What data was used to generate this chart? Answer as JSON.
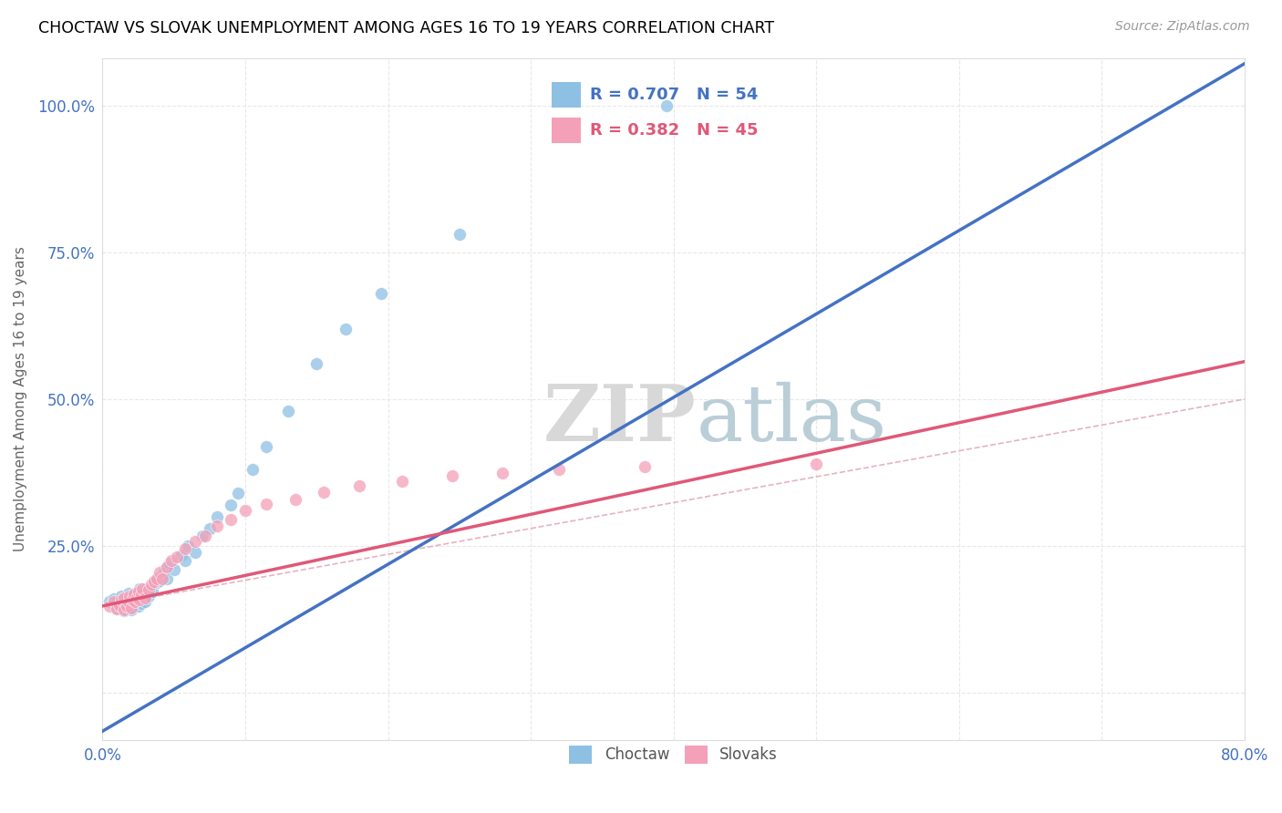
{
  "title": "CHOCTAW VS SLOVAK UNEMPLOYMENT AMONG AGES 16 TO 19 YEARS CORRELATION CHART",
  "source": "Source: ZipAtlas.com",
  "ylabel": "Unemployment Among Ages 16 to 19 years",
  "xlim": [
    0.0,
    0.8
  ],
  "ylim": [
    -0.08,
    1.08
  ],
  "choctaw_color": "#8EC0E4",
  "slovak_color": "#F4A0B8",
  "choctaw_line_color": "#4472C4",
  "slovak_line_color": "#E05878",
  "ref_line_color": "#D0A0B0",
  "axis_color": "#4472C4",
  "grid_color": "#E8E8E8",
  "choctaw_R": 0.707,
  "choctaw_N": 54,
  "slovak_R": 0.382,
  "slovak_N": 45,
  "legend_label_choctaw": "Choctaw",
  "legend_label_slovak": "Slovaks",
  "watermark_zip": "ZIP",
  "watermark_atlas": "atlas",
  "choctaw_line_slope": 1.42,
  "choctaw_line_intercept": -0.065,
  "slovak_line_slope": 0.52,
  "slovak_line_intercept": 0.148,
  "choctaw_scatter_x": [
    0.005,
    0.008,
    0.01,
    0.01,
    0.012,
    0.013,
    0.015,
    0.015,
    0.016,
    0.017,
    0.018,
    0.018,
    0.02,
    0.02,
    0.021,
    0.022,
    0.022,
    0.023,
    0.024,
    0.025,
    0.026,
    0.026,
    0.027,
    0.028,
    0.03,
    0.03,
    0.032,
    0.034,
    0.035,
    0.036,
    0.038,
    0.04,
    0.042,
    0.044,
    0.045,
    0.047,
    0.05,
    0.055,
    0.058,
    0.06,
    0.065,
    0.07,
    0.075,
    0.08,
    0.09,
    0.095,
    0.105,
    0.115,
    0.13,
    0.15,
    0.17,
    0.195,
    0.25,
    0.395
  ],
  "choctaw_scatter_y": [
    0.155,
    0.16,
    0.145,
    0.155,
    0.148,
    0.165,
    0.14,
    0.15,
    0.158,
    0.162,
    0.145,
    0.17,
    0.142,
    0.152,
    0.158,
    0.16,
    0.168,
    0.155,
    0.162,
    0.148,
    0.16,
    0.178,
    0.152,
    0.165,
    0.155,
    0.175,
    0.165,
    0.18,
    0.172,
    0.19,
    0.188,
    0.192,
    0.2,
    0.21,
    0.195,
    0.22,
    0.21,
    0.235,
    0.225,
    0.25,
    0.24,
    0.268,
    0.28,
    0.3,
    0.32,
    0.34,
    0.38,
    0.42,
    0.48,
    0.56,
    0.62,
    0.68,
    0.78,
    1.0
  ],
  "slovak_scatter_x": [
    0.005,
    0.008,
    0.01,
    0.012,
    0.013,
    0.015,
    0.015,
    0.017,
    0.018,
    0.019,
    0.02,
    0.021,
    0.022,
    0.023,
    0.024,
    0.025,
    0.026,
    0.027,
    0.028,
    0.03,
    0.032,
    0.034,
    0.036,
    0.038,
    0.04,
    0.042,
    0.045,
    0.048,
    0.052,
    0.058,
    0.065,
    0.072,
    0.08,
    0.09,
    0.1,
    0.115,
    0.135,
    0.155,
    0.18,
    0.21,
    0.245,
    0.28,
    0.32,
    0.38,
    0.5
  ],
  "slovak_scatter_y": [
    0.148,
    0.155,
    0.143,
    0.15,
    0.158,
    0.142,
    0.162,
    0.148,
    0.155,
    0.165,
    0.145,
    0.158,
    0.168,
    0.155,
    0.162,
    0.172,
    0.158,
    0.168,
    0.178,
    0.162,
    0.175,
    0.185,
    0.19,
    0.195,
    0.205,
    0.195,
    0.215,
    0.225,
    0.232,
    0.245,
    0.258,
    0.268,
    0.285,
    0.295,
    0.31,
    0.322,
    0.33,
    0.342,
    0.352,
    0.36,
    0.37,
    0.375,
    0.38,
    0.385,
    0.39
  ]
}
